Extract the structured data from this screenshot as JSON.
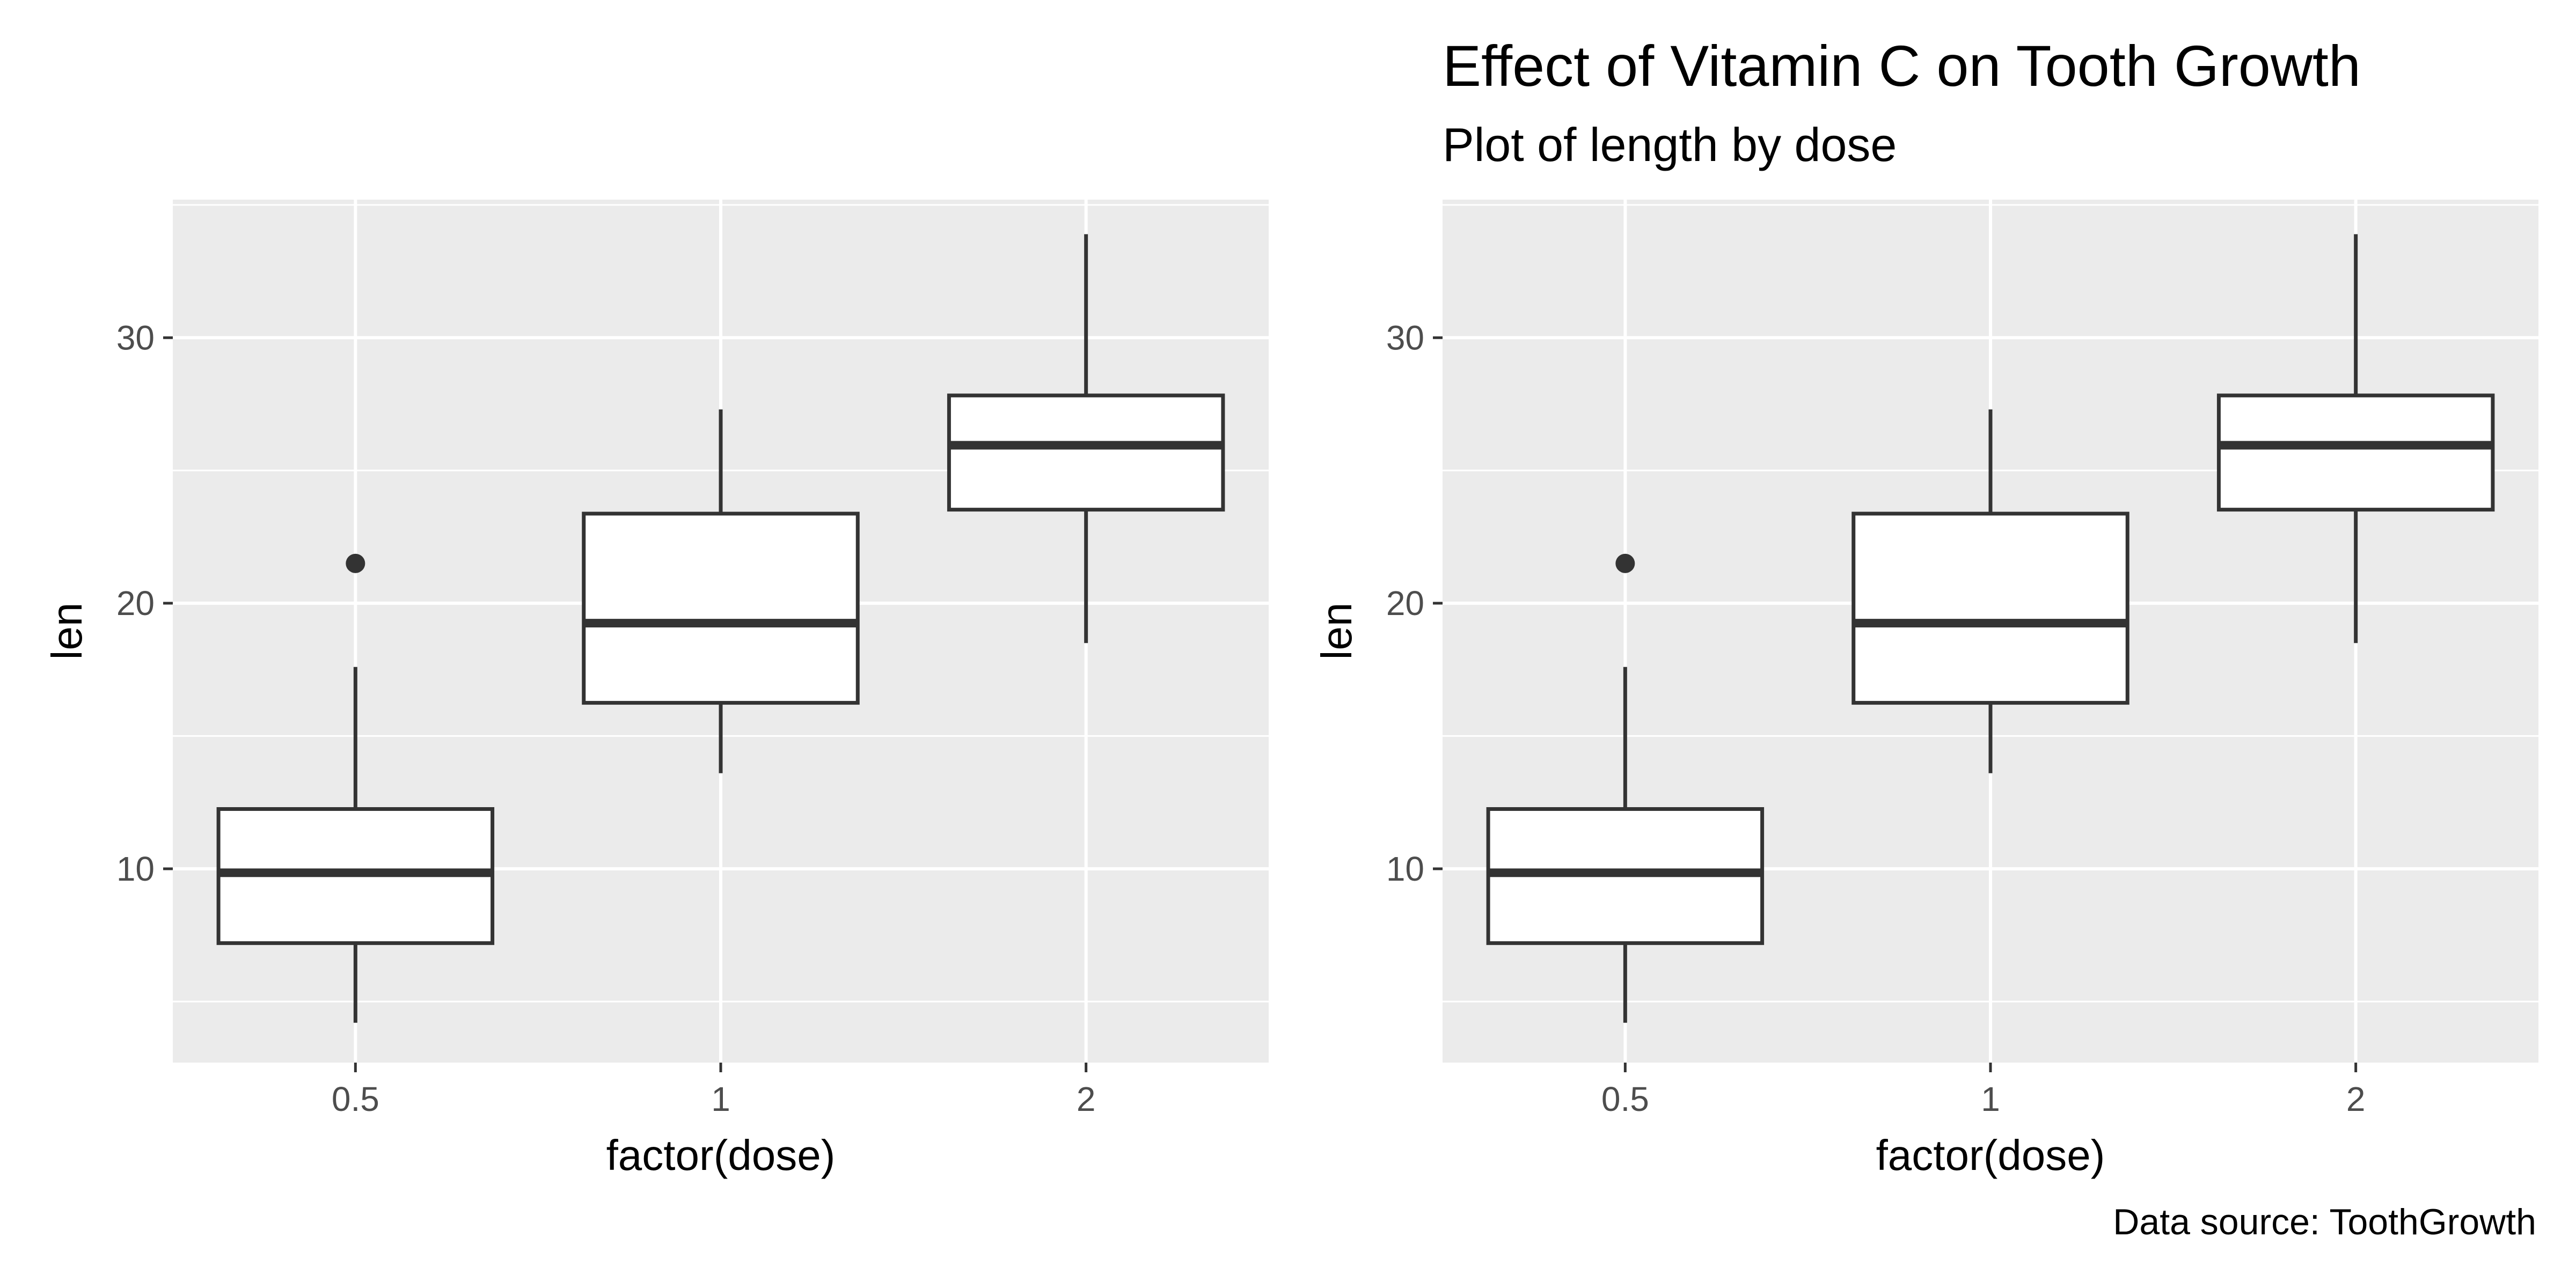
{
  "figure": {
    "caption": "Data source: ToothGrowth"
  },
  "chart_data": [
    {
      "type": "boxplot",
      "title": "",
      "subtitle": "",
      "xlabel": "factor(dose)",
      "ylabel": "len",
      "categories": [
        "0.5",
        "1",
        "2"
      ],
      "ylim": [
        2.7,
        35.2
      ],
      "yticks": [
        10,
        20,
        30
      ],
      "grid": true,
      "background": "#ebebeb",
      "box_fill": "#ffffff",
      "line_color": "#333333",
      "boxes": [
        {
          "category": "0.5",
          "lower_whisker": 4.2,
          "q1": 7.2,
          "median": 9.85,
          "q3": 12.25,
          "upper_whisker": 17.6,
          "outliers": [
            21.5
          ]
        },
        {
          "category": "1",
          "lower_whisker": 13.6,
          "q1": 16.25,
          "median": 19.25,
          "q3": 23.375,
          "upper_whisker": 27.3,
          "outliers": []
        },
        {
          "category": "2",
          "lower_whisker": 18.5,
          "q1": 23.525,
          "median": 25.95,
          "q3": 27.825,
          "upper_whisker": 33.9,
          "outliers": []
        }
      ]
    },
    {
      "type": "boxplot",
      "title": "Effect of Vitamin C on Tooth Growth",
      "subtitle": "Plot of length by dose",
      "xlabel": "factor(dose)",
      "ylabel": "len",
      "categories": [
        "0.5",
        "1",
        "2"
      ],
      "ylim": [
        2.7,
        35.2
      ],
      "yticks": [
        10,
        20,
        30
      ],
      "grid": true,
      "background": "#ebebeb",
      "box_fill": "#ffffff",
      "line_color": "#333333",
      "boxes": [
        {
          "category": "0.5",
          "lower_whisker": 4.2,
          "q1": 7.2,
          "median": 9.85,
          "q3": 12.25,
          "upper_whisker": 17.6,
          "outliers": [
            21.5
          ]
        },
        {
          "category": "1",
          "lower_whisker": 13.6,
          "q1": 16.25,
          "median": 19.25,
          "q3": 23.375,
          "upper_whisker": 27.3,
          "outliers": []
        },
        {
          "category": "2",
          "lower_whisker": 18.5,
          "q1": 23.525,
          "median": 25.95,
          "q3": 27.825,
          "upper_whisker": 33.9,
          "outliers": []
        }
      ]
    }
  ]
}
